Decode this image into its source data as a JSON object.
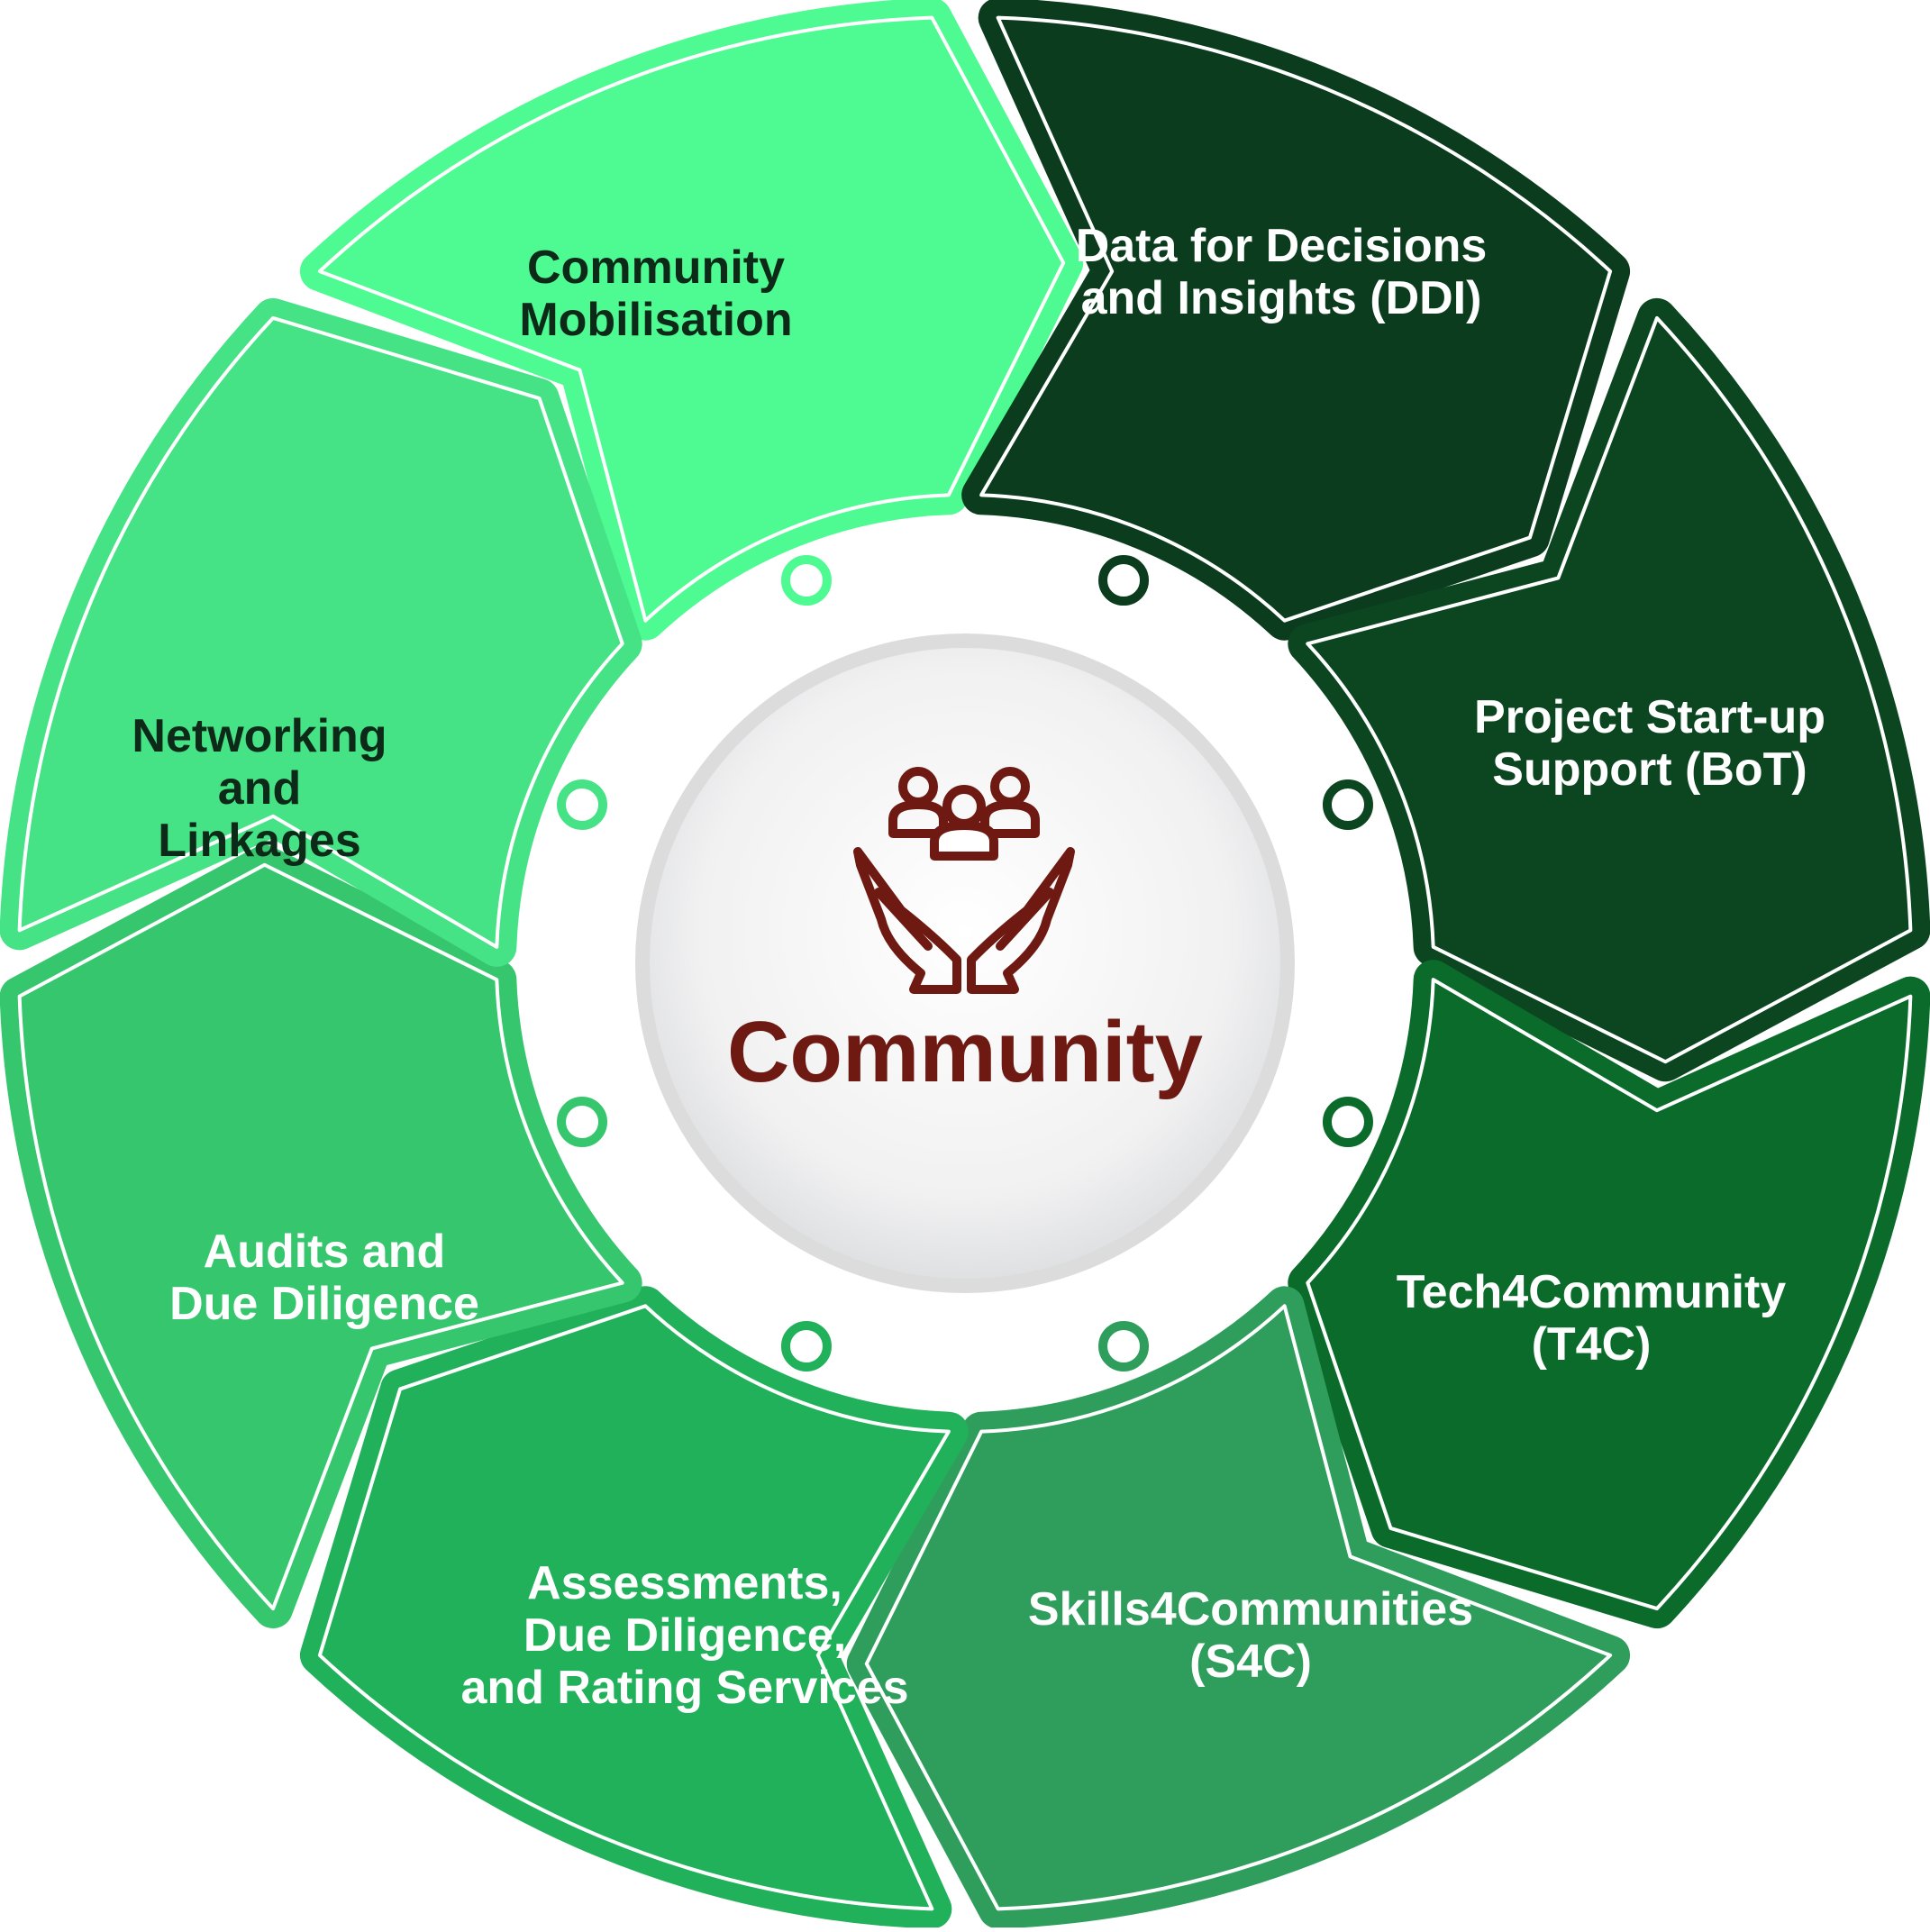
{
  "center": {
    "title": "Community",
    "icon": "community-care-icon",
    "title_color": "#6e1a12"
  },
  "segments": [
    {
      "id": "community-mobilisation",
      "lines": [
        "Community",
        "Mobilisation"
      ],
      "fill": "#4dfb92",
      "text_color": "#0c2a17"
    },
    {
      "id": "ddi",
      "lines": [
        "Data for Decisions",
        "and Insights (DDI)"
      ],
      "fill": "#0b3c1d",
      "text_color": "#ffffff"
    },
    {
      "id": "bot",
      "lines": [
        "Project Start-up",
        "Support (BoT)"
      ],
      "fill": "#0c4620",
      "text_color": "#ffffff"
    },
    {
      "id": "t4c",
      "lines": [
        "Tech4Community",
        "(T4C)"
      ],
      "fill": "#0a6b2b",
      "text_color": "#ffffff"
    },
    {
      "id": "s4c",
      "lines": [
        "Skills4Communities",
        "(S4C)"
      ],
      "fill": "#2f9e5c",
      "text_color": "#ffffff"
    },
    {
      "id": "assessments",
      "lines": [
        "Assessments,",
        "Due Diligence,",
        "and Rating Services"
      ],
      "fill": "#20b15a",
      "text_color": "#ffffff"
    },
    {
      "id": "audits",
      "lines": [
        "Audits and",
        "Due Diligence"
      ],
      "fill": "#36c66d",
      "text_color": "#ffffff"
    },
    {
      "id": "networking",
      "lines": [
        "Networking",
        "and",
        "Linkages"
      ],
      "fill": "#45e286",
      "text_color": "#0c2a17"
    }
  ]
}
